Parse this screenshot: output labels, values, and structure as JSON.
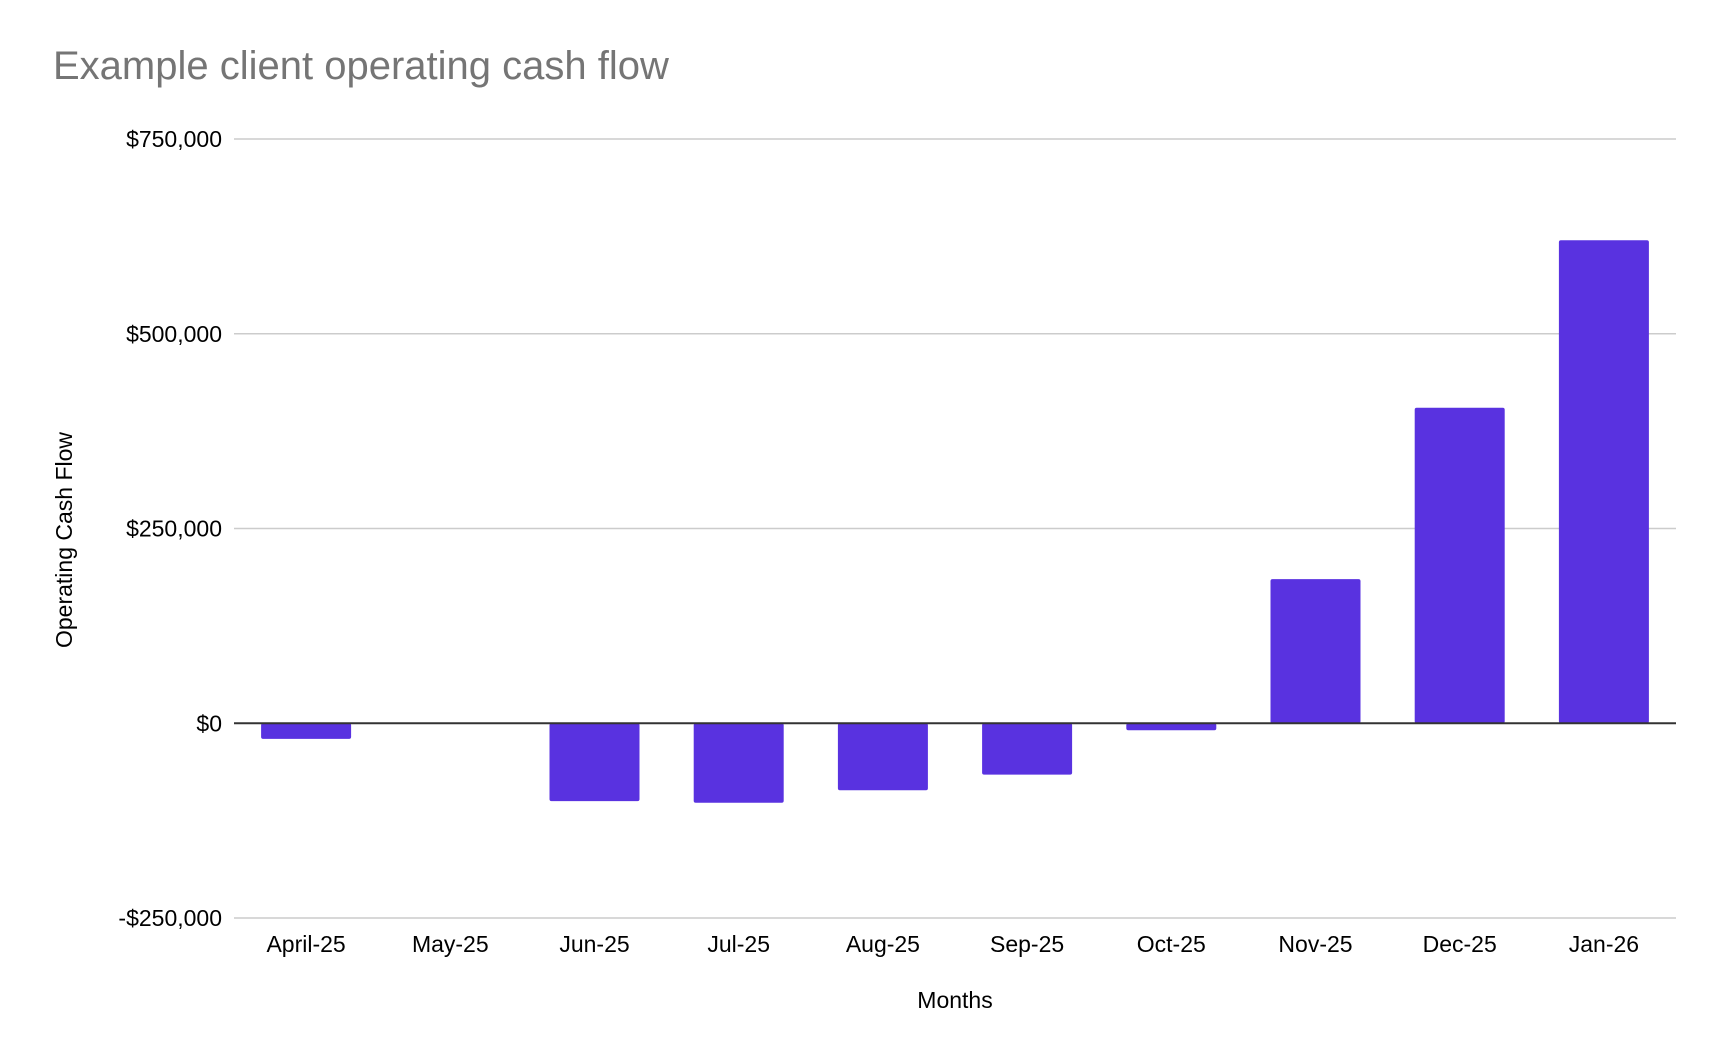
{
  "chart_data": {
    "type": "bar",
    "title": "Example client operating cash flow",
    "xlabel": "Months",
    "ylabel": "Operating Cash Flow",
    "categories": [
      "April-25",
      "May-25",
      "Jun-25",
      "Jul-25",
      "Aug-25",
      "Sep-25",
      "Oct-25",
      "Nov-25",
      "Dec-25",
      "Jan-26"
    ],
    "values": [
      -20000,
      0,
      -100000,
      -102000,
      -86000,
      -66000,
      -9000,
      185000,
      405000,
      620000
    ],
    "ylim": [
      -250000,
      750000
    ],
    "yticks": [
      -250000,
      0,
      250000,
      500000,
      750000
    ],
    "ytick_labels": [
      "-$250,000",
      "$0",
      "$250,000",
      "$500,000",
      "$750,000"
    ],
    "grid": true,
    "legend": "none",
    "colors": {
      "bar": "#5932e0",
      "title": "#757575",
      "grid": "#cccccc",
      "zero_line": "#333333",
      "text": "#000000"
    }
  }
}
